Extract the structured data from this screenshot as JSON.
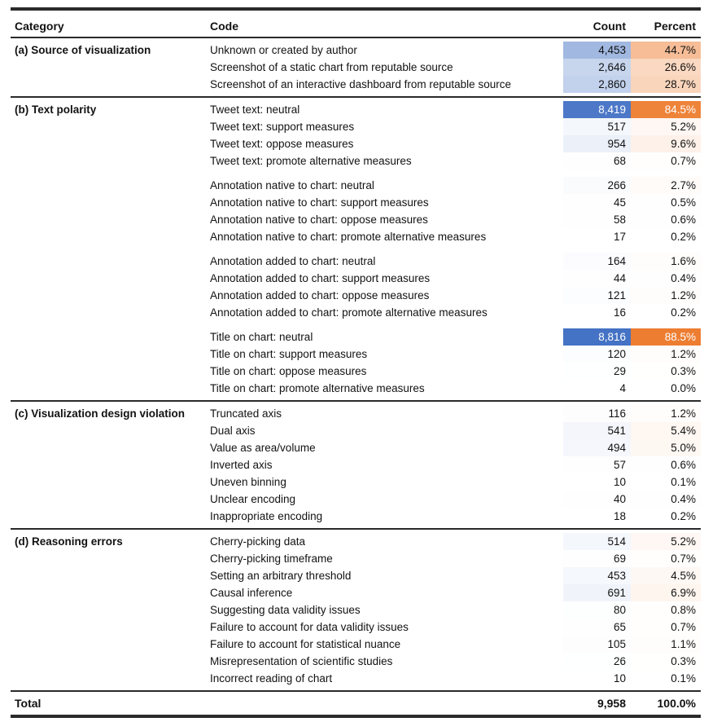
{
  "meta": {
    "count_max_color": "#4472C4",
    "percent_max_color": "#ED7D31",
    "count_scale_max": 8816,
    "percent_scale_max": 88.5,
    "rule_color": "#2a2a2a"
  },
  "header": {
    "category": "Category",
    "code": "Code",
    "count": "Count",
    "percent": "Percent"
  },
  "sections": [
    {
      "category": "(a) Source of visualization",
      "groups": [
        [
          {
            "code": "Unknown or created by author",
            "count": 4453,
            "count_text": "4,453",
            "percent": 44.7,
            "percent_text": "44.7%"
          },
          {
            "code": "Screenshot of a static chart from reputable source",
            "count": 2646,
            "count_text": "2,646",
            "percent": 26.6,
            "percent_text": "26.6%"
          },
          {
            "code": "Screenshot of an interactive dashboard from reputable source",
            "count": 2860,
            "count_text": "2,860",
            "percent": 28.7,
            "percent_text": "28.7%"
          }
        ]
      ]
    },
    {
      "category": "(b) Text polarity",
      "groups": [
        [
          {
            "code": "Tweet text: neutral",
            "count": 8419,
            "count_text": "8,419",
            "percent": 84.5,
            "percent_text": "84.5%"
          },
          {
            "code": "Tweet text: support measures",
            "count": 517,
            "count_text": "517",
            "percent": 5.2,
            "percent_text": "5.2%"
          },
          {
            "code": "Tweet text: oppose measures",
            "count": 954,
            "count_text": "954",
            "percent": 9.6,
            "percent_text": "9.6%"
          },
          {
            "code": "Tweet text: promote alternative measures",
            "count": 68,
            "count_text": "68",
            "percent": 0.7,
            "percent_text": "0.7%"
          }
        ],
        [
          {
            "code": "Annotation native to chart: neutral",
            "count": 266,
            "count_text": "266",
            "percent": 2.7,
            "percent_text": "2.7%"
          },
          {
            "code": "Annotation native to chart: support measures",
            "count": 45,
            "count_text": "45",
            "percent": 0.5,
            "percent_text": "0.5%"
          },
          {
            "code": "Annotation native to chart: oppose measures",
            "count": 58,
            "count_text": "58",
            "percent": 0.6,
            "percent_text": "0.6%"
          },
          {
            "code": "Annotation native to chart: promote alternative measures",
            "count": 17,
            "count_text": "17",
            "percent": 0.2,
            "percent_text": "0.2%"
          }
        ],
        [
          {
            "code": "Annotation added to chart: neutral",
            "count": 164,
            "count_text": "164",
            "percent": 1.6,
            "percent_text": "1.6%"
          },
          {
            "code": "Annotation added to chart: support measures",
            "count": 44,
            "count_text": "44",
            "percent": 0.4,
            "percent_text": "0.4%"
          },
          {
            "code": "Annotation added to chart: oppose measures",
            "count": 121,
            "count_text": "121",
            "percent": 1.2,
            "percent_text": "1.2%"
          },
          {
            "code": "Annotation added to chart: promote alternative measures",
            "count": 16,
            "count_text": "16",
            "percent": 0.2,
            "percent_text": "0.2%"
          }
        ],
        [
          {
            "code": "Title on chart: neutral",
            "count": 8816,
            "count_text": "8,816",
            "percent": 88.5,
            "percent_text": "88.5%"
          },
          {
            "code": "Title on chart: support measures",
            "count": 120,
            "count_text": "120",
            "percent": 1.2,
            "percent_text": "1.2%"
          },
          {
            "code": "Title on chart: oppose measures",
            "count": 29,
            "count_text": "29",
            "percent": 0.3,
            "percent_text": "0.3%"
          },
          {
            "code": "Title on chart: promote alternative measures",
            "count": 4,
            "count_text": "4",
            "percent": 0.0,
            "percent_text": "0.0%"
          }
        ]
      ]
    },
    {
      "category": "(c) Visualization design violation",
      "groups": [
        [
          {
            "code": "Truncated axis",
            "count": 116,
            "count_text": "116",
            "percent": 1.2,
            "percent_text": "1.2%"
          },
          {
            "code": "Dual axis",
            "count": 541,
            "count_text": "541",
            "percent": 5.4,
            "percent_text": "5.4%"
          },
          {
            "code": "Value as area/volume",
            "count": 494,
            "count_text": "494",
            "percent": 5.0,
            "percent_text": "5.0%"
          },
          {
            "code": "Inverted axis",
            "count": 57,
            "count_text": "57",
            "percent": 0.6,
            "percent_text": "0.6%"
          },
          {
            "code": "Uneven binning",
            "count": 10,
            "count_text": "10",
            "percent": 0.1,
            "percent_text": "0.1%"
          },
          {
            "code": "Unclear encoding",
            "count": 40,
            "count_text": "40",
            "percent": 0.4,
            "percent_text": "0.4%"
          },
          {
            "code": "Inappropriate encoding",
            "count": 18,
            "count_text": "18",
            "percent": 0.2,
            "percent_text": "0.2%"
          }
        ]
      ]
    },
    {
      "category": "(d) Reasoning errors",
      "groups": [
        [
          {
            "code": "Cherry-picking data",
            "count": 514,
            "count_text": "514",
            "percent": 5.2,
            "percent_text": "5.2%"
          },
          {
            "code": "Cherry-picking timeframe",
            "count": 69,
            "count_text": "69",
            "percent": 0.7,
            "percent_text": "0.7%"
          },
          {
            "code": "Setting an arbitrary threshold",
            "count": 453,
            "count_text": "453",
            "percent": 4.5,
            "percent_text": "4.5%"
          },
          {
            "code": "Causal inference",
            "count": 691,
            "count_text": "691",
            "percent": 6.9,
            "percent_text": "6.9%"
          },
          {
            "code": "Suggesting data validity issues",
            "count": 80,
            "count_text": "80",
            "percent": 0.8,
            "percent_text": "0.8%"
          },
          {
            "code": "Failure to account for data validity issues",
            "count": 65,
            "count_text": "65",
            "percent": 0.7,
            "percent_text": "0.7%"
          },
          {
            "code": "Failure to account for statistical nuance",
            "count": 105,
            "count_text": "105",
            "percent": 1.1,
            "percent_text": "1.1%"
          },
          {
            "code": "Misrepresentation of scientific studies",
            "count": 26,
            "count_text": "26",
            "percent": 0.3,
            "percent_text": "0.3%"
          },
          {
            "code": "Incorrect reading of chart",
            "count": 10,
            "count_text": "10",
            "percent": 0.1,
            "percent_text": "0.1%"
          }
        ]
      ]
    }
  ],
  "total": {
    "label": "Total",
    "count_text": "9,958",
    "percent_text": "100.0%"
  }
}
